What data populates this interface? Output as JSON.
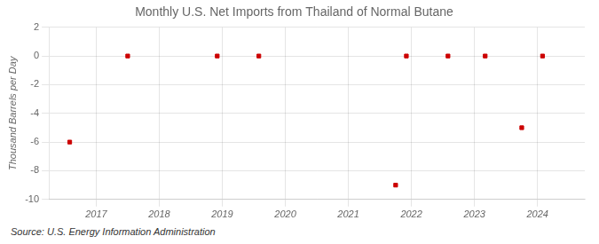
{
  "chart_data": {
    "type": "scatter",
    "title": "Monthly U.S. Net Imports from Thailand of Normal Butane",
    "ylabel": "Thousand Barrels per Day",
    "annotations": [
      "Source: U.S. Energy Information Administration"
    ],
    "x": [
      2016.58,
      2017.5,
      2018.92,
      2019.58,
      2021.75,
      2021.92,
      2022.58,
      2023.17,
      2023.75,
      2024.08
    ],
    "values": [
      -6,
      0,
      0,
      0,
      -9,
      0,
      0,
      0,
      -5,
      0
    ],
    "color": "#cc0000",
    "marker": "square",
    "xlim": [
      2016.25,
      2024.75
    ],
    "xticks": [
      2017,
      2018,
      2019,
      2020,
      2021,
      2022,
      2023,
      2024
    ],
    "ylim": [
      -10,
      2
    ],
    "yticks": [
      -10,
      -8,
      -6,
      -4,
      -2,
      0,
      2
    ],
    "grid": true
  }
}
